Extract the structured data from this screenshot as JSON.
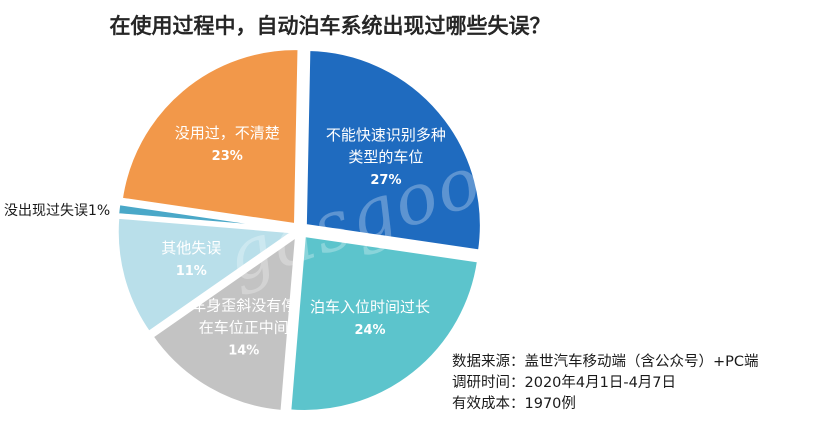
{
  "chart_data": {
    "type": "pie",
    "title": "在使用过程中，自动泊车系统出现过哪些失误？",
    "slices": [
      {
        "label": [
          "不能快速识别多种",
          "类型的车位"
        ],
        "value": 27,
        "pct": "27%",
        "color": "#1f6bbf"
      },
      {
        "label": [
          "泊车入位时间过长"
        ],
        "value": 24,
        "pct": "24%",
        "color": "#5cc4cc"
      },
      {
        "label": [
          "车身歪斜没有停",
          "在车位正中间"
        ],
        "value": 14,
        "pct": "14%",
        "color": "#c3c3c3"
      },
      {
        "label": [
          "其他失误"
        ],
        "value": 11,
        "pct": "11%",
        "color": "#b9dfea"
      },
      {
        "label": [
          "没出现过失误1%"
        ],
        "value": 1,
        "pct": "",
        "color": "#4aa8c8",
        "outside": true
      },
      {
        "label": [
          "没用过，不清楚"
        ],
        "value": 23,
        "pct": "23%",
        "color": "#f2984a"
      }
    ]
  },
  "notes": {
    "source": "数据来源：盖世汽车移动端（含公众号）+PC端",
    "period": "调研时间：2020年4月1日-4月7日",
    "sample": "有效成本：1970例"
  },
  "watermark": "gasgoo"
}
